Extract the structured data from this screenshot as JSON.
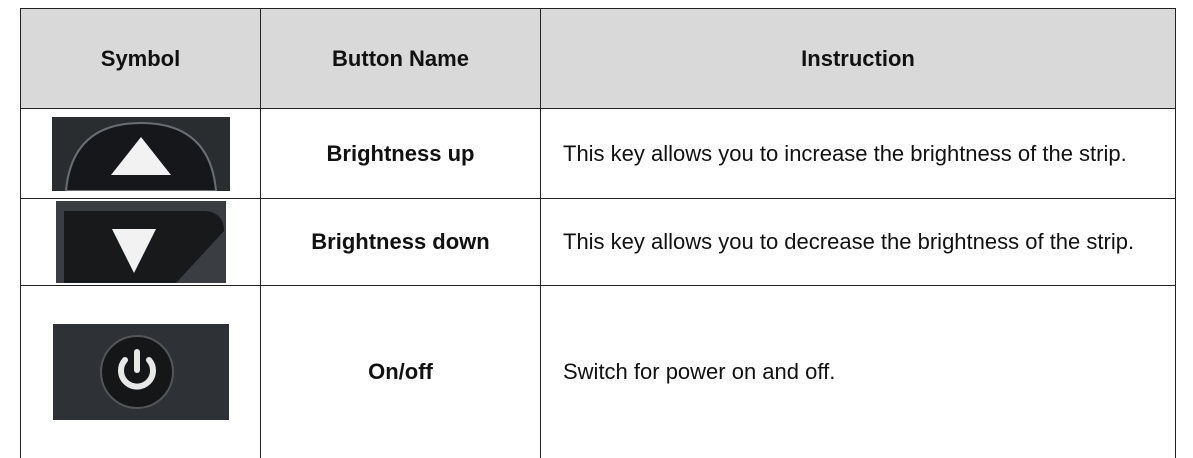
{
  "table": {
    "header": [
      "Symbol",
      "Button Name",
      "Instruction"
    ],
    "rows": [
      {
        "name": "Brightness up",
        "instruction": "This key allows you to increase the brightness of the strip."
      },
      {
        "name": "Brightness down",
        "instruction": "This key allows you to decrease the brightness of the strip."
      },
      {
        "name": "On/off",
        "instruction": "Switch for power on and off."
      }
    ]
  }
}
